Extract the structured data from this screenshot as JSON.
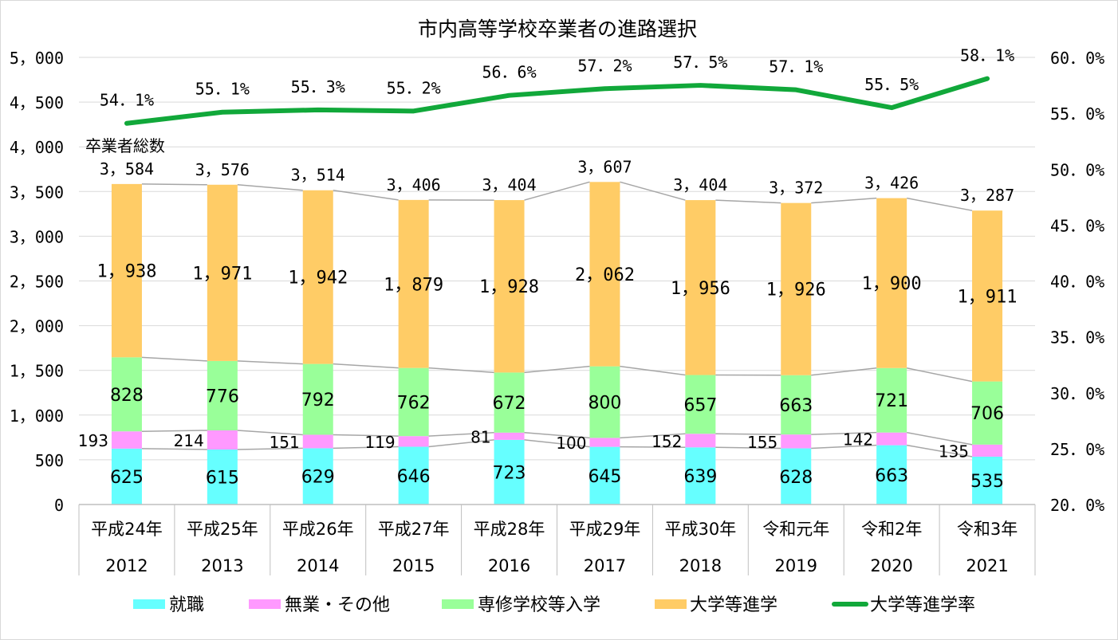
{
  "chart_data": {
    "type": "bar",
    "title": "市内高等学校卒業者の進路選択",
    "categories": [
      [
        "平成24年",
        "2012"
      ],
      [
        "平成25年",
        "2013"
      ],
      [
        "平成26年",
        "2014"
      ],
      [
        "平成27年",
        "2015"
      ],
      [
        "平成28年",
        "2016"
      ],
      [
        "平成29年",
        "2017"
      ],
      [
        "平成30年",
        "2018"
      ],
      [
        "令和元年",
        "2019"
      ],
      [
        "令和2年",
        "2020"
      ],
      [
        "令和3年",
        "2021"
      ]
    ],
    "stack_series": [
      {
        "name": "就職",
        "color": "#66FFFF",
        "values": [
          625,
          615,
          629,
          646,
          723,
          645,
          639,
          628,
          663,
          535
        ],
        "labels": [
          "625",
          "615",
          "629",
          "646",
          "723",
          "645",
          "639",
          "628",
          "663",
          "535"
        ]
      },
      {
        "name": "無業・その他",
        "color": "#FF99FF",
        "values": [
          193,
          214,
          151,
          119,
          81,
          100,
          152,
          155,
          142,
          135
        ],
        "labels": [
          "193",
          "214",
          "151",
          "119",
          "81",
          "100",
          "152",
          "155",
          "142",
          "135"
        ]
      },
      {
        "name": "専修学校等入学",
        "color": "#99FF99",
        "values": [
          828,
          776,
          792,
          762,
          672,
          800,
          657,
          663,
          721,
          706
        ],
        "labels": [
          "828",
          "776",
          "792",
          "762",
          "672",
          "800",
          "657",
          "663",
          "721",
          "706"
        ]
      },
      {
        "name": "大学等進学",
        "color": "#FFCC66",
        "values": [
          1938,
          1971,
          1942,
          1879,
          1928,
          2062,
          1956,
          1926,
          1900,
          1911
        ],
        "labels": [
          "1，938",
          "1，971",
          "1，942",
          "1，879",
          "1，928",
          "2，062",
          "1，956",
          "1，926",
          "1，900",
          "1，911"
        ]
      }
    ],
    "totals": {
      "label": "卒業者総数",
      "values": [
        3584,
        3576,
        3514,
        3406,
        3404,
        3607,
        3404,
        3372,
        3426,
        3287
      ],
      "labels": [
        "3，584",
        "3，576",
        "3，514",
        "3，406",
        "3，404",
        "3，607",
        "3，404",
        "3，372",
        "3，426",
        "3，287"
      ]
    },
    "rate_series": {
      "name": "大学等進学率",
      "color": "#11A83A",
      "values": [
        54.1,
        55.1,
        55.3,
        55.2,
        56.6,
        57.2,
        57.5,
        57.1,
        55.5,
        58.1
      ],
      "labels": [
        "54．1%",
        "55．1%",
        "55．3%",
        "55．2%",
        "56．6%",
        "57．2%",
        "57．5%",
        "57．1%",
        "55．5%",
        "58．1%"
      ]
    },
    "y_left": {
      "min": 0,
      "max": 5000,
      "step": 500,
      "tick_labels": [
        "0",
        "500",
        "1，000",
        "1，500",
        "2，000",
        "2，500",
        "3，000",
        "3，500",
        "4，000",
        "4，500",
        "5，000"
      ]
    },
    "y_right": {
      "min": 20,
      "max": 60,
      "step": 5,
      "tick_labels": [
        "20．0%",
        "25．0%",
        "30．0%",
        "35．0%",
        "40．0%",
        "45．0%",
        "50．0%",
        "55．0%",
        "60．0%"
      ]
    },
    "grid": true,
    "legend_position": "bottom"
  }
}
